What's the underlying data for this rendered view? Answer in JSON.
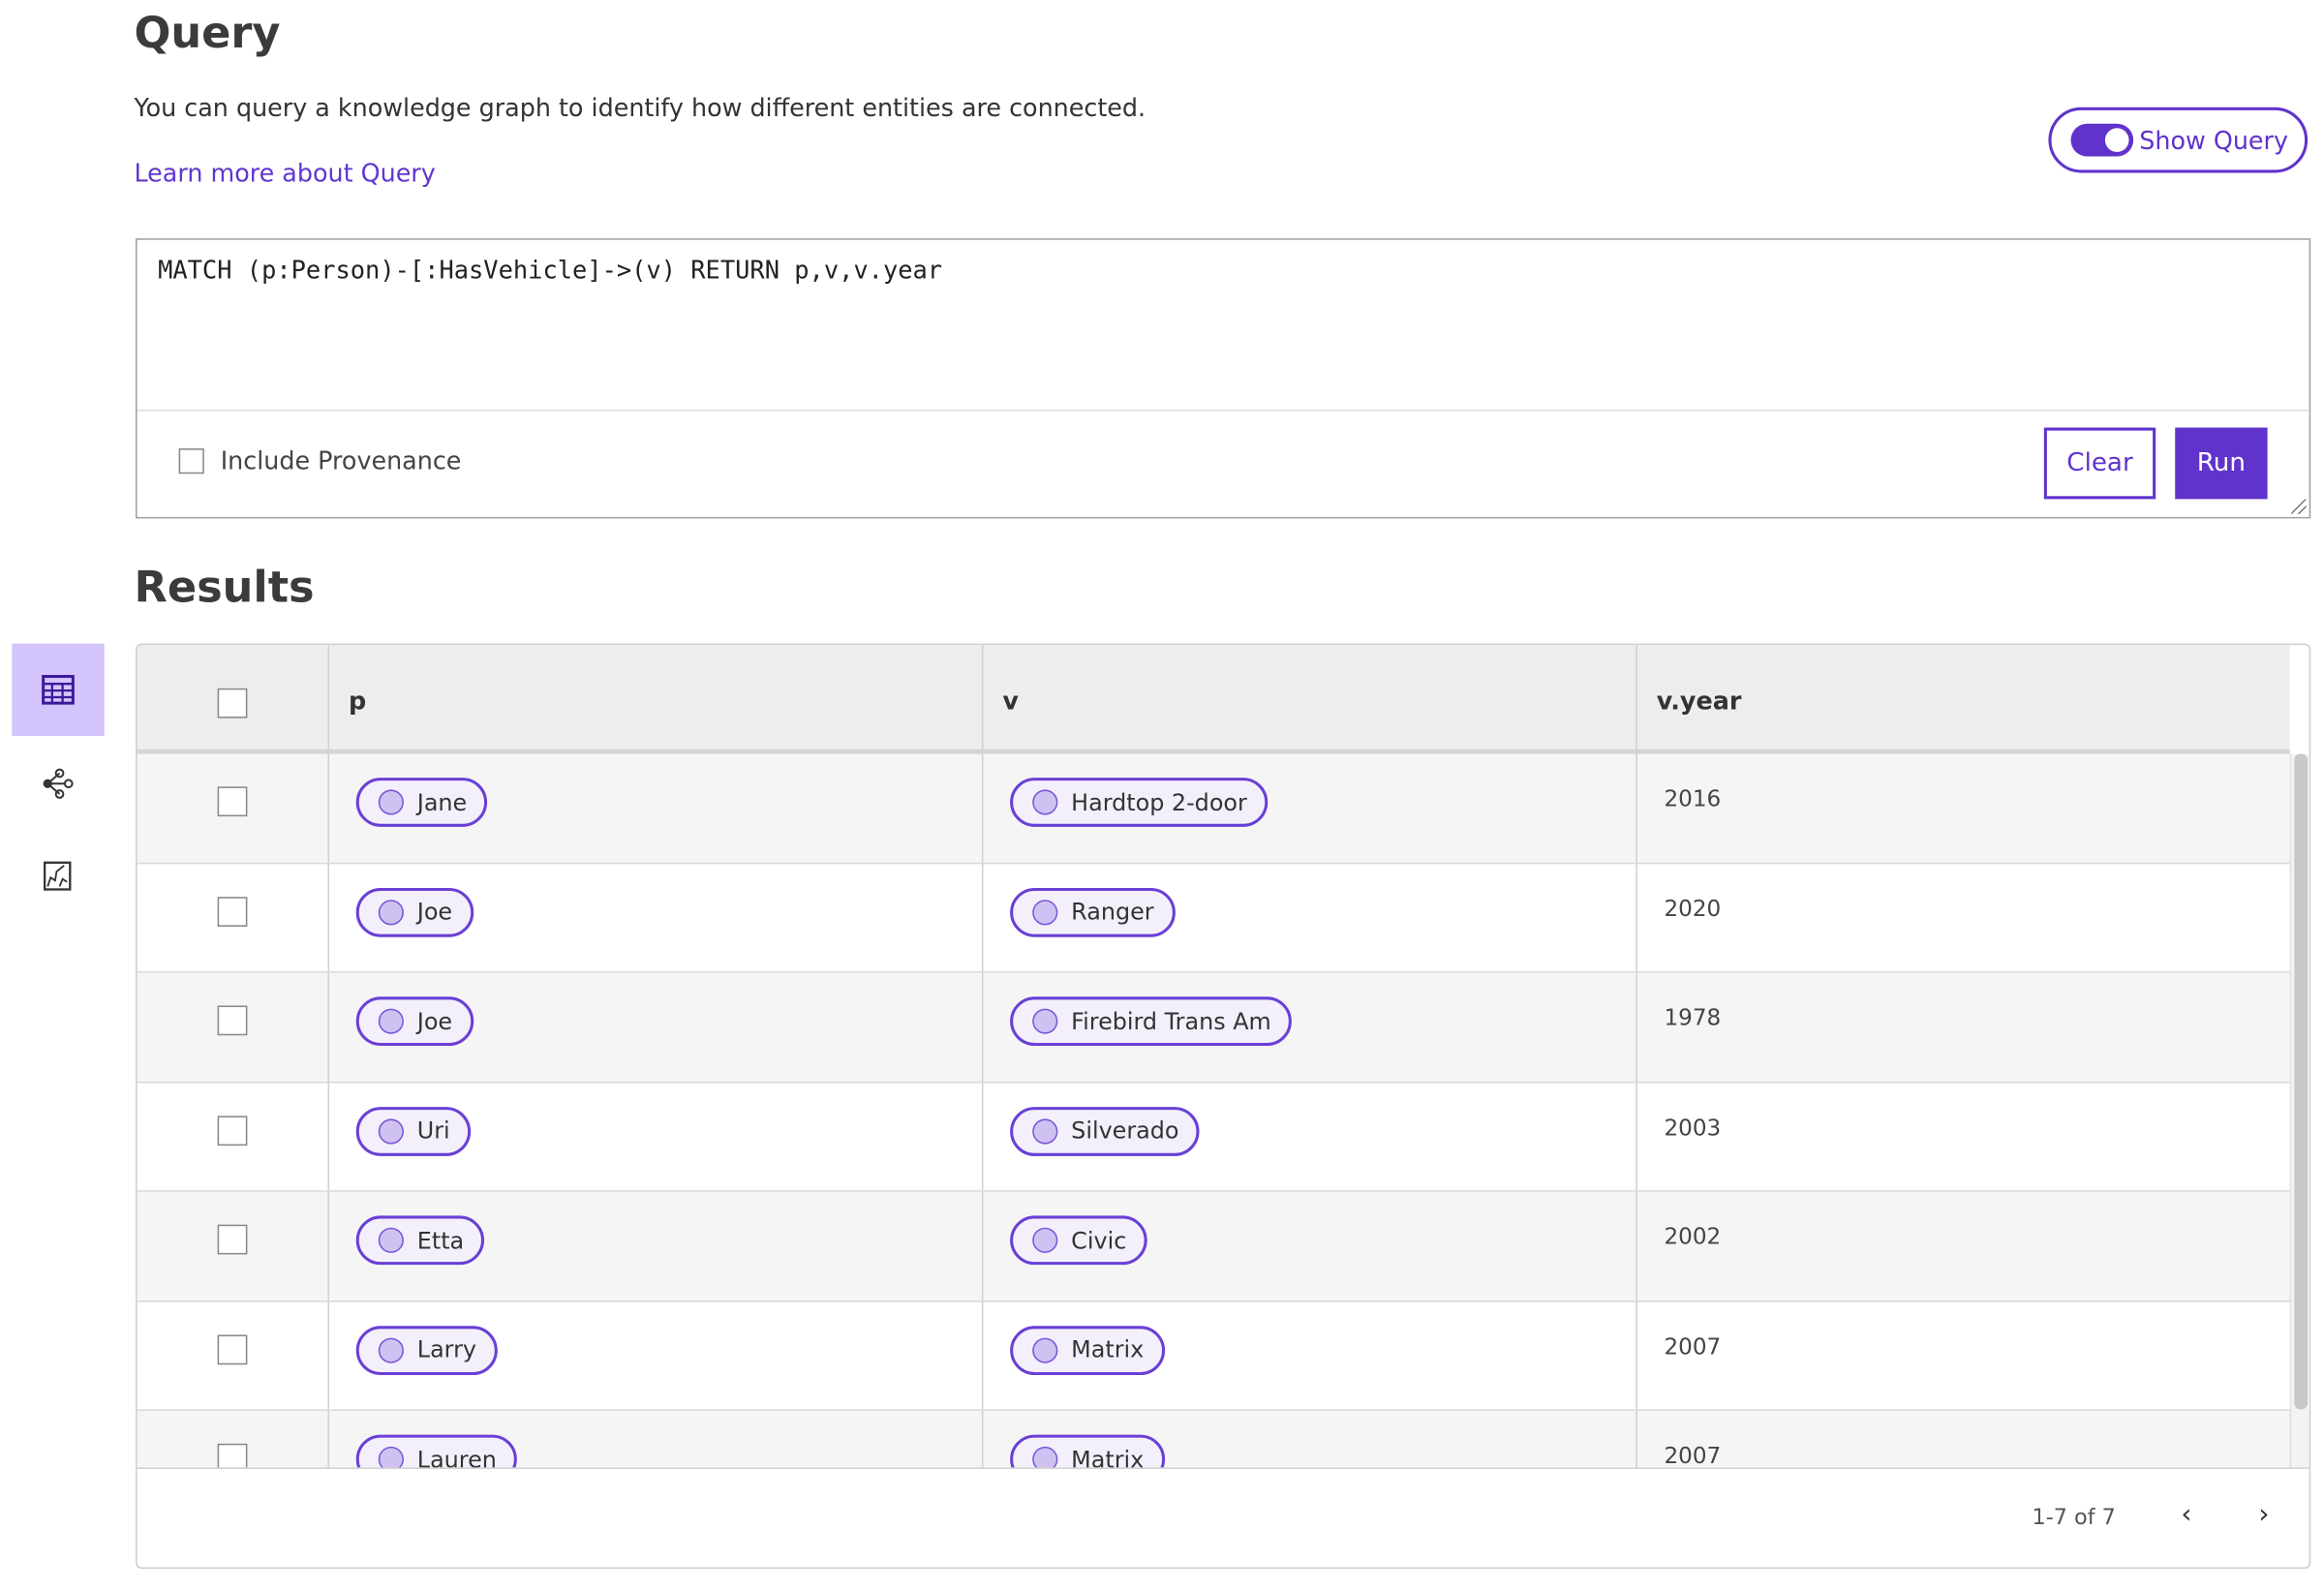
{
  "page": {
    "title": "Query",
    "description": "You can query a knowledge graph to identify how different entities are connected.",
    "learn_more": "Learn more about Query",
    "show_query_label": "Show Query",
    "show_query_on": true
  },
  "query": {
    "text": "MATCH (p:Person)-[:HasVehicle]->(v) RETURN p,v,v.year",
    "include_provenance_label": "Include Provenance",
    "include_provenance": false,
    "clear_label": "Clear",
    "run_label": "Run"
  },
  "results": {
    "title": "Results",
    "columns": [
      "p",
      "v",
      "v.year"
    ],
    "rows": [
      {
        "p": "Jane",
        "v": "Hardtop 2-door",
        "year": "2016"
      },
      {
        "p": "Joe",
        "v": "Ranger",
        "year": "2020"
      },
      {
        "p": "Joe",
        "v": "Firebird Trans Am",
        "year": "1978"
      },
      {
        "p": "Uri",
        "v": "Silverado",
        "year": "2003"
      },
      {
        "p": "Etta",
        "v": "Civic",
        "year": "2002"
      },
      {
        "p": "Larry",
        "v": "Matrix",
        "year": "2007"
      },
      {
        "p": "Lauren",
        "v": "Matrix",
        "year": "2007"
      }
    ],
    "pagination": "1-7 of 7"
  },
  "sidebar": {
    "items": [
      {
        "icon": "table-icon",
        "active": true
      },
      {
        "icon": "graph-icon",
        "active": false
      },
      {
        "icon": "chart-icon",
        "active": false
      }
    ]
  },
  "colors": {
    "accent": "#6033cc",
    "active_sidebar": "#d4c4fc",
    "chip_fill": "#cfc2f2"
  }
}
